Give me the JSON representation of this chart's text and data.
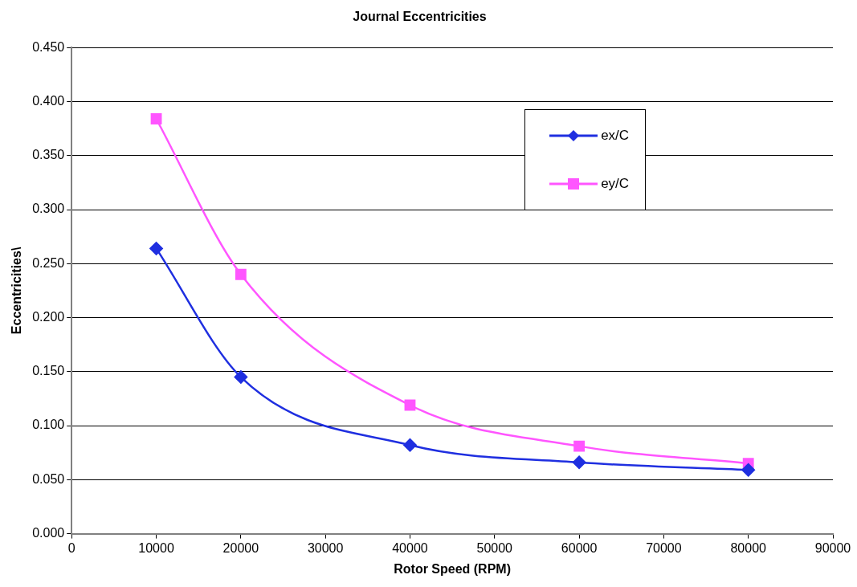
{
  "chart_data": {
    "type": "line",
    "title": "Journal Eccentricities",
    "xlabel": "Rotor Speed (RPM)",
    "ylabel": "Eccentricities\\",
    "x": [
      10000,
      20000,
      40000,
      60000,
      80000
    ],
    "series": [
      {
        "name": "ex/C",
        "color": "#1f2fe0",
        "marker": "diamond",
        "values": [
          0.264,
          0.145,
          0.082,
          0.066,
          0.059
        ]
      },
      {
        "name": "ey/C",
        "color": "#ff55ff",
        "marker": "square",
        "values": [
          0.384,
          0.24,
          0.119,
          0.081,
          0.065
        ]
      }
    ],
    "xlim": [
      0,
      90000
    ],
    "xticks": [
      0,
      10000,
      20000,
      30000,
      40000,
      50000,
      60000,
      70000,
      80000,
      90000
    ],
    "ylim": [
      0,
      0.45
    ],
    "yticks": [
      {
        "value": 0,
        "label": "0.000"
      },
      {
        "value": 0.05,
        "label": "0.050"
      },
      {
        "value": 0.1,
        "label": "0.100"
      },
      {
        "value": 0.15,
        "label": "0.150"
      },
      {
        "value": 0.2,
        "label": "0.200"
      },
      {
        "value": 0.25,
        "label": "0.250"
      },
      {
        "value": 0.3,
        "label": "0.300"
      },
      {
        "value": 0.35,
        "label": "0.350"
      },
      {
        "value": 0.4,
        "label": "0.400"
      },
      {
        "value": 0.45,
        "label": "0.450"
      }
    ],
    "grid": "y",
    "legend": "top right",
    "line_style": "solid"
  }
}
